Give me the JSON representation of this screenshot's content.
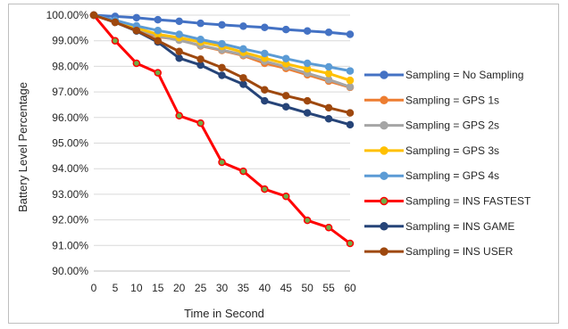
{
  "chart_data": {
    "type": "line",
    "title": "",
    "xlabel": "Time in Second",
    "ylabel": "Battery Level Percentage",
    "x": [
      0,
      5,
      10,
      15,
      20,
      25,
      30,
      35,
      40,
      45,
      50,
      55,
      60
    ],
    "x_ticks": [
      "0",
      "5",
      "10",
      "15",
      "20",
      "25",
      "30",
      "35",
      "40",
      "45",
      "50",
      "55",
      "60"
    ],
    "ylim": [
      90,
      100
    ],
    "y_ticks": [
      "90.00%",
      "91.00%",
      "92.00%",
      "93.00%",
      "94.00%",
      "95.00%",
      "96.00%",
      "97.00%",
      "98.00%",
      "99.00%",
      "100.00%"
    ],
    "grid": true,
    "legend_position": "right",
    "series": [
      {
        "name": "Sampling =  No Sampling",
        "color": "#4472c4",
        "marker_fill": "#4472c4",
        "values": [
          100.0,
          99.95,
          99.9,
          99.82,
          99.76,
          99.68,
          99.62,
          99.57,
          99.52,
          99.44,
          99.38,
          99.33,
          99.25
        ]
      },
      {
        "name": "Sampling =  GPS 1s",
        "color": "#ed7d31",
        "marker_fill": "#ed7d31",
        "values": [
          100.0,
          99.72,
          99.42,
          99.15,
          99.05,
          98.8,
          98.62,
          98.42,
          98.12,
          97.92,
          97.67,
          97.42,
          97.18
        ]
      },
      {
        "name": "Sampling =  GPS 2s",
        "color": "#a5a5a5",
        "marker_fill": "#a5a5a5",
        "values": [
          100.0,
          99.75,
          99.45,
          99.18,
          99.02,
          98.82,
          98.64,
          98.45,
          98.2,
          97.98,
          97.73,
          97.48,
          97.2
        ]
      },
      {
        "name": "Sampling =  GPS 3s",
        "color": "#ffc000",
        "marker_fill": "#ffc000",
        "values": [
          100.0,
          99.78,
          99.5,
          99.25,
          99.12,
          98.95,
          98.78,
          98.55,
          98.32,
          98.1,
          97.9,
          97.72,
          97.45
        ]
      },
      {
        "name": "Sampling =  GPS 4s",
        "color": "#5b9bd5",
        "marker_fill": "#5b9bd5",
        "values": [
          100.0,
          99.8,
          99.58,
          99.4,
          99.25,
          99.05,
          98.88,
          98.68,
          98.5,
          98.3,
          98.12,
          97.98,
          97.82
        ]
      },
      {
        "name": "Sampling =  INS FASTEST",
        "color": "#ff0000",
        "marker_fill": "#70ad47",
        "values": [
          100.0,
          99.0,
          98.12,
          97.75,
          96.07,
          95.78,
          94.25,
          93.9,
          93.2,
          92.92,
          91.98,
          91.7,
          91.08
        ]
      },
      {
        "name": "Sampling =  INS GAME",
        "color": "#264478",
        "marker_fill": "#264478",
        "values": [
          100.0,
          99.72,
          99.38,
          98.95,
          98.32,
          98.05,
          97.65,
          97.3,
          96.65,
          96.42,
          96.18,
          95.95,
          95.72
        ]
      },
      {
        "name": "Sampling =  INS USER",
        "color": "#9e480e",
        "marker_fill": "#9e480e",
        "values": [
          100.0,
          99.72,
          99.4,
          99.0,
          98.58,
          98.28,
          97.95,
          97.55,
          97.08,
          96.85,
          96.65,
          96.38,
          96.18
        ]
      }
    ]
  }
}
